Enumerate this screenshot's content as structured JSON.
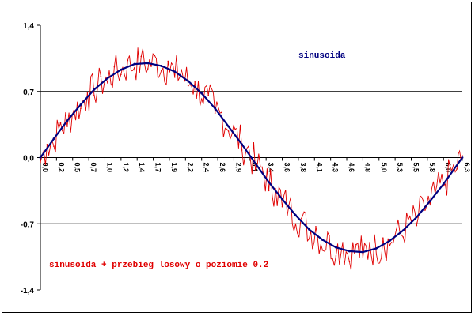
{
  "chart_data": {
    "type": "line",
    "ylim": [
      -1.4,
      1.4
    ],
    "xlim": [
      0,
      6.28
    ],
    "grid": "horizontal-lines-at-y-ticks",
    "y_ticks": [
      1.4,
      0.7,
      0.0,
      -0.7,
      -1.4
    ],
    "y_tick_labels": [
      "1,4",
      "0,7",
      "0,0",
      "-0,7",
      "-1,4"
    ],
    "x_tick_labels": [
      "0,0",
      "0,2",
      "0,5",
      "0,7",
      "1,0",
      "1,2",
      "1,4",
      "1,7",
      "1,9",
      "2,2",
      "2,4",
      "2,6",
      "2,9",
      "3,1",
      "3,4",
      "3,6",
      "3,8",
      "4,1",
      "4,3",
      "4,6",
      "4,8",
      "5,0",
      "5,3",
      "5,5",
      "5,8",
      "6,0",
      "6,3"
    ],
    "x_tick_values": [
      0.0,
      0.24,
      0.48,
      0.72,
      0.96,
      1.2,
      1.44,
      1.68,
      1.92,
      2.16,
      2.4,
      2.64,
      2.88,
      3.12,
      3.36,
      3.6,
      3.84,
      4.08,
      4.32,
      4.56,
      4.8,
      5.04,
      5.28,
      5.52,
      5.76,
      6.0,
      6.28
    ],
    "colors": {
      "sinusoida": "#000080",
      "noisy": "#e00000"
    },
    "series": [
      {
        "name": "sinusoida",
        "function": "sin(x)",
        "x": [
          0.0,
          0.2,
          0.4,
          0.6,
          0.8,
          1.0,
          1.2,
          1.4,
          1.6,
          1.8,
          2.0,
          2.2,
          2.4,
          2.6,
          2.8,
          3.0,
          3.2,
          3.4,
          3.6,
          3.8,
          4.0,
          4.2,
          4.4,
          4.6,
          4.8,
          5.0,
          5.2,
          5.4,
          5.6,
          5.8,
          6.0,
          6.28
        ],
        "values": [
          0.0,
          0.2,
          0.39,
          0.56,
          0.72,
          0.84,
          0.93,
          0.99,
          1.0,
          0.97,
          0.91,
          0.81,
          0.68,
          0.52,
          0.33,
          0.14,
          -0.06,
          -0.26,
          -0.44,
          -0.61,
          -0.76,
          -0.87,
          -0.95,
          -0.99,
          -1.0,
          -0.96,
          -0.88,
          -0.77,
          -0.63,
          -0.46,
          -0.28,
          0.0
        ]
      },
      {
        "name": "sinusoida + przebieg losowy o poziomie 0.2",
        "noise_level": 0.2,
        "x": [
          0.0,
          0.1,
          0.2,
          0.3,
          0.4,
          0.5,
          0.6,
          0.7,
          0.8,
          0.9,
          1.0,
          1.1,
          1.2,
          1.3,
          1.4,
          1.5,
          1.6,
          1.7,
          1.8,
          1.9,
          2.0,
          2.1,
          2.2,
          2.3,
          2.4,
          2.5,
          2.6,
          2.7,
          2.8,
          2.9,
          3.0,
          3.1,
          3.2,
          3.3,
          3.4,
          3.5,
          3.6,
          3.7,
          3.8,
          3.9,
          4.0,
          4.1,
          4.2,
          4.3,
          4.4,
          4.5,
          4.6,
          4.7,
          4.8,
          4.9,
          5.0,
          5.1,
          5.2,
          5.3,
          5.4,
          5.5,
          5.6,
          5.7,
          5.8,
          5.9,
          6.0,
          6.1,
          6.2,
          6.28
        ],
        "values": [
          -0.05,
          0.14,
          0.12,
          0.37,
          0.33,
          0.5,
          0.52,
          0.69,
          0.66,
          0.86,
          0.79,
          0.96,
          0.88,
          1.03,
          0.95,
          1.07,
          0.94,
          1.08,
          0.92,
          1.02,
          0.85,
          0.93,
          0.76,
          0.8,
          0.62,
          0.66,
          0.47,
          0.48,
          0.28,
          0.3,
          0.08,
          0.12,
          -0.13,
          -0.1,
          -0.35,
          -0.33,
          -0.52,
          -0.5,
          -0.7,
          -0.62,
          -0.86,
          -0.73,
          -0.98,
          -0.83,
          -1.04,
          -0.9,
          -1.1,
          -0.92,
          -1.06,
          -0.9,
          -1.02,
          -0.85,
          -0.93,
          -0.76,
          -0.84,
          -0.62,
          -0.72,
          -0.46,
          -0.5,
          -0.3,
          -0.3,
          -0.1,
          -0.12,
          0.02
        ]
      }
    ],
    "annotations": [
      "sinusoida",
      "sinusoida + przebieg losowy o poziomie 0.2"
    ]
  }
}
